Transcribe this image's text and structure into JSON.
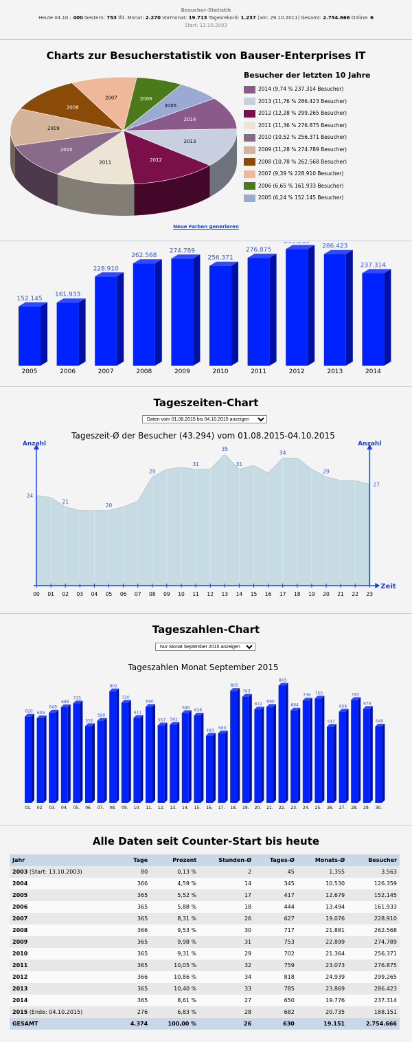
{
  "header": {
    "title": "Besucher-Statistik",
    "line1": [
      {
        "label": "Heute 04.10.:",
        "value": "400"
      },
      {
        "label": "Gestern:",
        "value": "753"
      },
      {
        "label": "lfd. Monat:",
        "value": "2.270"
      },
      {
        "label": "Vormonat:",
        "value": "19.713"
      },
      {
        "label": "Tagesrekord:",
        "value": "1.237"
      },
      {
        "label": "(am: 29.10.2011)",
        "value": ""
      },
      {
        "label": "Gesamt:",
        "value": "2.754.666"
      },
      {
        "label": "Online:",
        "value": "6"
      }
    ],
    "start": "Start: 13.10.2003"
  },
  "pie_section": {
    "title": "Charts zur Besucherstatistik von Bauser-Enterprises IT",
    "legend_title": "Besucher der letzten 10 Jahre",
    "new_colors_link": "Neue Farben generieren"
  },
  "tageszeiten": {
    "title": "Tageszeiten-Chart",
    "select_value": "Daten vom 01.08.2015 bis 04.10.2015 anzeigen"
  },
  "tageszahlen": {
    "title": "Tageszahlen-Chart",
    "select_value": "Nur Monat September 2015 anzeigen"
  },
  "chart_data": [
    {
      "type": "pie",
      "title": "Besucher der letzten 10 Jahre",
      "slices": [
        {
          "label": "2014",
          "legend": "2014 (9,74 % 237.314 Besucher)",
          "value": 237314,
          "color": "#8a5a8a"
        },
        {
          "label": "2013",
          "legend": "2013 (11,76 % 286.423 Besucher)",
          "value": 286423,
          "color": "#c8d0e0"
        },
        {
          "label": "2012",
          "legend": "2012 (12,28 % 299.265 Besucher)",
          "value": 299265,
          "color": "#7a0f4a"
        },
        {
          "label": "2011",
          "legend": "2011 (11,36 % 276.875 Besucher)",
          "value": 276875,
          "color": "#ece4d4"
        },
        {
          "label": "2010",
          "legend": "2010 (10,52 % 256.371 Besucher)",
          "value": 256371,
          "color": "#8a6a8a"
        },
        {
          "label": "2009",
          "legend": "2009 (11,28 % 274.789 Besucher)",
          "value": 274789,
          "color": "#d4b49a"
        },
        {
          "label": "2008",
          "legend": "2008 (10,78 % 262.568 Besucher)",
          "value": 262568,
          "color": "#8a4a08"
        },
        {
          "label": "2007",
          "legend": "2007 (9,39 % 228.910 Besucher)",
          "value": 228910,
          "color": "#f0b89a"
        },
        {
          "label": "2006",
          "legend": "2006 (6,65 % 161.933 Besucher)",
          "value": 161933,
          "color": "#4a7a1a"
        },
        {
          "label": "2005",
          "legend": "2005 (6,24 % 152.145 Besucher)",
          "value": 152145,
          "color": "#9aaad4"
        }
      ]
    },
    {
      "type": "bar",
      "categories": [
        "2005",
        "2006",
        "2007",
        "2008",
        "2009",
        "2010",
        "2011",
        "2012",
        "2013",
        "2014"
      ],
      "values": [
        152145,
        161933,
        228910,
        262568,
        274789,
        256371,
        276875,
        299265,
        286423,
        237314
      ],
      "value_labels": [
        "152.145",
        "161.933",
        "228.910",
        "262.568",
        "274.789",
        "256.371",
        "276.875",
        "299.265",
        "286.423",
        "237.314"
      ],
      "color": "#0022ff"
    },
    {
      "type": "area",
      "title": "Tageszeit-Ø der Besucher (43.294) vom 01.08.2015-04.10.2015",
      "ylabel_left": "Anzahl",
      "ylabel_right": "Anzahl",
      "xlabel": "Zeit",
      "x": [
        "00",
        "01",
        "02",
        "03",
        "04",
        "05",
        "06",
        "07",
        "08",
        "09",
        "10",
        "11",
        "12",
        "13",
        "14",
        "15",
        "16",
        "17",
        "18",
        "19",
        "20",
        "21",
        "22",
        "23"
      ],
      "values": [
        24,
        23.5,
        21,
        20,
        20,
        20,
        21,
        22.5,
        29,
        31,
        31.5,
        31,
        31,
        35,
        31,
        32,
        30,
        34,
        34,
        31,
        29,
        28,
        28,
        27
      ],
      "labels": {
        "0": "24",
        "2": "21",
        "5": "20",
        "8": "29",
        "11": "31",
        "13": "35",
        "14": "31",
        "17": "34",
        "20": "29",
        "23": "27"
      },
      "ylim": [
        0,
        37
      ],
      "color": "#c6dbe4"
    },
    {
      "type": "bar",
      "title": "Tageszahlen Monat September 2015",
      "categories": [
        "01.",
        "02.",
        "03.",
        "04.",
        "05.",
        "06.",
        "07.",
        "08.",
        "09.",
        "10.",
        "11.",
        "12.",
        "13.",
        "14.",
        "15.",
        "16.",
        "17.",
        "18.",
        "19.",
        "20.",
        "21.",
        "22.",
        "23.",
        "24.",
        "25.",
        "26.",
        "27.",
        "28.",
        "29.",
        "30."
      ],
      "values": [
        620,
        609,
        649,
        688,
        715,
        552,
        590,
        802,
        720,
        611,
        690,
        557,
        562,
        646,
        628,
        483,
        500,
        805,
        763,
        672,
        690,
        843,
        664,
        736,
        750,
        547,
        656,
        740,
        676,
        549
      ],
      "ylim": [
        0,
        880
      ],
      "color": "#0022ff"
    },
    {
      "type": "table",
      "title": "Alle Daten seit Counter-Start bis heute",
      "columns": [
        "Jahr",
        "Tage",
        "Prozent",
        "Stunden-Ø",
        "Tages-Ø",
        "Monats-Ø",
        "Besucher"
      ],
      "rows": [
        [
          "2003",
          "(Start: 13.10.2003)",
          "80",
          "0,13 %",
          "2",
          "45",
          "1.355",
          "3.563"
        ],
        [
          "2004",
          "",
          "366",
          "4,59 %",
          "14",
          "345",
          "10.530",
          "126.359"
        ],
        [
          "2005",
          "",
          "365",
          "5,52 %",
          "17",
          "417",
          "12.679",
          "152.145"
        ],
        [
          "2006",
          "",
          "365",
          "5,88 %",
          "18",
          "444",
          "13.494",
          "161.933"
        ],
        [
          "2007",
          "",
          "365",
          "8,31 %",
          "26",
          "627",
          "19.076",
          "228.910"
        ],
        [
          "2008",
          "",
          "366",
          "9,53 %",
          "30",
          "717",
          "21.881",
          "262.568"
        ],
        [
          "2009",
          "",
          "365",
          "9,98 %",
          "31",
          "753",
          "22.899",
          "274.789"
        ],
        [
          "2010",
          "",
          "365",
          "9,31 %",
          "29",
          "702",
          "21.364",
          "256.371"
        ],
        [
          "2011",
          "",
          "365",
          "10,05 %",
          "32",
          "759",
          "23.073",
          "276.875"
        ],
        [
          "2012",
          "",
          "366",
          "10,86 %",
          "34",
          "818",
          "24.939",
          "299.265"
        ],
        [
          "2013",
          "",
          "365",
          "10,40 %",
          "33",
          "785",
          "23.869",
          "286.423"
        ],
        [
          "2014",
          "",
          "365",
          "8,61 %",
          "27",
          "650",
          "19.776",
          "237.314"
        ],
        [
          "2015",
          "(Ende: 04.10.2015)",
          "276",
          "6,83 %",
          "28",
          "682",
          "20.735",
          "188.151"
        ]
      ],
      "total": [
        "GESAMT",
        "4.374",
        "100,00 %",
        "26",
        "630",
        "19.151",
        "2.754.666"
      ]
    }
  ]
}
